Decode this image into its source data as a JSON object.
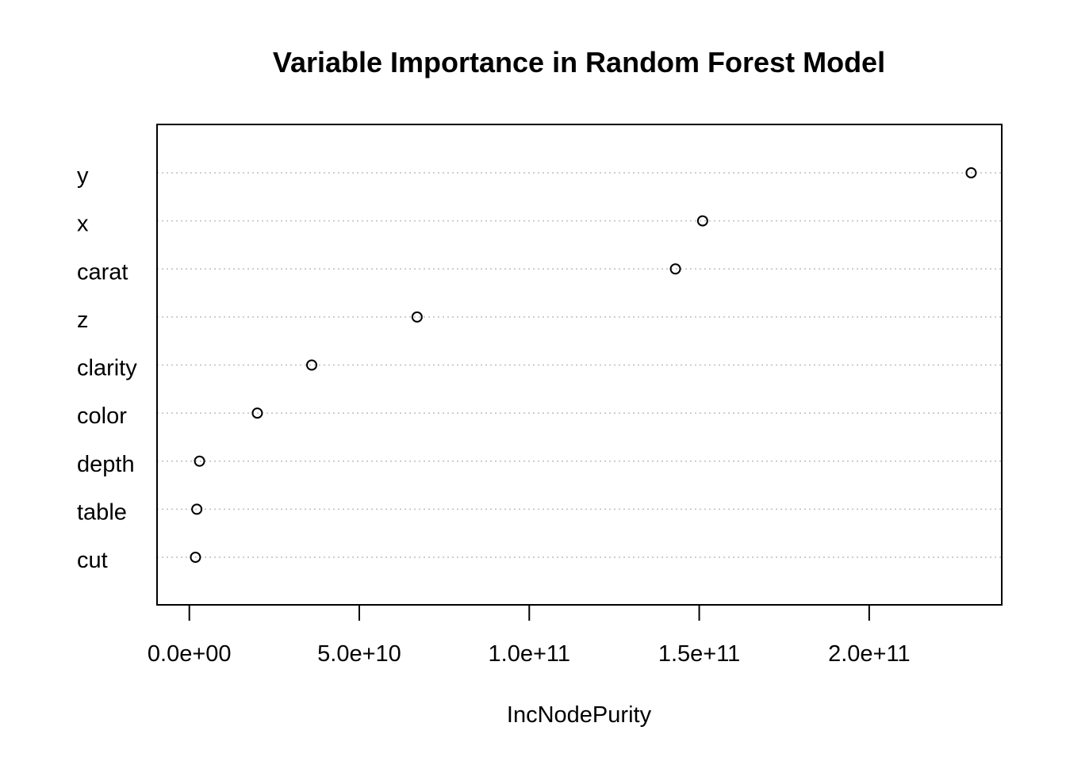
{
  "chart_data": {
    "type": "scatter",
    "title": "Variable Importance in Random Forest Model",
    "xlabel": "IncNodePurity",
    "ylabel": "",
    "categories": [
      "y",
      "x",
      "carat",
      "z",
      "clarity",
      "color",
      "depth",
      "table",
      "cut"
    ],
    "values": [
      230000000000.0,
      151000000000.0,
      143000000000.0,
      67000000000.0,
      36000000000.0,
      20000000000.0,
      3000000000.0,
      2200000000.0,
      1800000000.0
    ],
    "xlim": [
      -9500000000.0,
      239000000000.0
    ],
    "xticks": [
      0,
      50000000000.0,
      100000000000.0,
      150000000000.0,
      200000000000.0
    ],
    "xtick_labels": [
      "0.0e+00",
      "5.0e+10",
      "1.0e+11",
      "1.5e+11",
      "2.0e+11"
    ],
    "grid": "dotted horizontal",
    "legend": "none"
  }
}
